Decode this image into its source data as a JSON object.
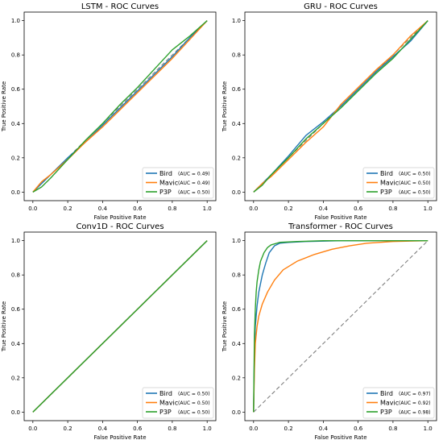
{
  "chart_data": [
    {
      "type": "line",
      "title": "LSTM - ROC Curves",
      "xlabel": "False Positive Rate",
      "ylabel": "True Positive Rate",
      "xlim": [
        -0.05,
        1.05
      ],
      "ylim": [
        -0.05,
        1.05
      ],
      "ticks": [
        0.0,
        0.2,
        0.4,
        0.6,
        0.8,
        1.0
      ],
      "tick_labels": [
        "0.0",
        "0.2",
        "0.4",
        "0.6",
        "0.8",
        "1.0"
      ],
      "diagonal": {
        "style": "dashed",
        "color": "#808080"
      },
      "legend_position": "lower-right",
      "series": [
        {
          "name": "Bird",
          "auc_label": "(AUC = 0.49)",
          "color": "#1f77b4",
          "points": [
            [
              0,
              0
            ],
            [
              0.05,
              0.05
            ],
            [
              0.1,
              0.1
            ],
            [
              0.2,
              0.2
            ],
            [
              0.3,
              0.29
            ],
            [
              0.4,
              0.39
            ],
            [
              0.5,
              0.49
            ],
            [
              0.6,
              0.59
            ],
            [
              0.7,
              0.69
            ],
            [
              0.8,
              0.79
            ],
            [
              0.9,
              0.9
            ],
            [
              1,
              1
            ]
          ]
        },
        {
          "name": "Mavic",
          "auc_label": "(AUC = 0.49)",
          "color": "#ff7f0e",
          "points": [
            [
              0,
              0
            ],
            [
              0.05,
              0.06
            ],
            [
              0.1,
              0.1
            ],
            [
              0.2,
              0.19
            ],
            [
              0.3,
              0.29
            ],
            [
              0.4,
              0.38
            ],
            [
              0.5,
              0.48
            ],
            [
              0.6,
              0.58
            ],
            [
              0.7,
              0.68
            ],
            [
              0.8,
              0.78
            ],
            [
              0.9,
              0.89
            ],
            [
              1,
              1
            ]
          ]
        },
        {
          "name": "P3P",
          "auc_label": "(AUC = 0.50)",
          "color": "#2ca02c",
          "points": [
            [
              0,
              0
            ],
            [
              0.05,
              0.03
            ],
            [
              0.1,
              0.08
            ],
            [
              0.2,
              0.19
            ],
            [
              0.3,
              0.3
            ],
            [
              0.4,
              0.4
            ],
            [
              0.5,
              0.51
            ],
            [
              0.6,
              0.61
            ],
            [
              0.7,
              0.72
            ],
            [
              0.8,
              0.83
            ],
            [
              0.9,
              0.91
            ],
            [
              1,
              1
            ]
          ]
        }
      ]
    },
    {
      "type": "line",
      "title": "GRU - ROC Curves",
      "xlabel": "False Positive Rate",
      "ylabel": "True Positive Rate",
      "xlim": [
        -0.05,
        1.05
      ],
      "ylim": [
        -0.05,
        1.05
      ],
      "ticks": [
        0.0,
        0.2,
        0.4,
        0.6,
        0.8,
        1.0
      ],
      "tick_labels": [
        "0.0",
        "0.2",
        "0.4",
        "0.6",
        "0.8",
        "1.0"
      ],
      "diagonal": {
        "style": "dashed",
        "color": "#808080"
      },
      "legend_position": "lower-right",
      "series": [
        {
          "name": "Bird",
          "auc_label": "(AUC = 0.50)",
          "color": "#1f77b4",
          "points": [
            [
              0,
              0
            ],
            [
              0.05,
              0.05
            ],
            [
              0.1,
              0.1
            ],
            [
              0.2,
              0.21
            ],
            [
              0.3,
              0.33
            ],
            [
              0.4,
              0.41
            ],
            [
              0.5,
              0.5
            ],
            [
              0.6,
              0.6
            ],
            [
              0.7,
              0.7
            ],
            [
              0.8,
              0.79
            ],
            [
              0.9,
              0.88
            ],
            [
              1,
              1
            ]
          ]
        },
        {
          "name": "Mavic",
          "auc_label": "(AUC = 0.50)",
          "color": "#ff7f0e",
          "points": [
            [
              0,
              0
            ],
            [
              0.05,
              0.05
            ],
            [
              0.1,
              0.09
            ],
            [
              0.2,
              0.19
            ],
            [
              0.3,
              0.29
            ],
            [
              0.4,
              0.38
            ],
            [
              0.5,
              0.51
            ],
            [
              0.6,
              0.61
            ],
            [
              0.7,
              0.71
            ],
            [
              0.8,
              0.8
            ],
            [
              0.9,
              0.91
            ],
            [
              1,
              1
            ]
          ]
        },
        {
          "name": "P3P",
          "auc_label": "(AUC = 0.50)",
          "color": "#2ca02c",
          "points": [
            [
              0,
              0
            ],
            [
              0.05,
              0.04
            ],
            [
              0.1,
              0.1
            ],
            [
              0.2,
              0.2
            ],
            [
              0.3,
              0.31
            ],
            [
              0.4,
              0.4
            ],
            [
              0.5,
              0.49
            ],
            [
              0.6,
              0.59
            ],
            [
              0.7,
              0.69
            ],
            [
              0.8,
              0.78
            ],
            [
              0.9,
              0.89
            ],
            [
              1,
              1
            ]
          ]
        }
      ]
    },
    {
      "type": "line",
      "title": "Conv1D - ROC Curves",
      "xlabel": "False Positive Rate",
      "ylabel": "True Positive Rate",
      "xlim": [
        -0.05,
        1.05
      ],
      "ylim": [
        -0.05,
        1.05
      ],
      "ticks": [
        0.0,
        0.2,
        0.4,
        0.6,
        0.8,
        1.0
      ],
      "tick_labels": [
        "0.0",
        "0.2",
        "0.4",
        "0.6",
        "0.8",
        "1.0"
      ],
      "diagonal": {
        "style": "dashed",
        "color": "#808080"
      },
      "legend_position": "lower-right",
      "series": [
        {
          "name": "Bird",
          "auc_label": "(AUC = 0.50)",
          "color": "#1f77b4",
          "points": [
            [
              0,
              0
            ],
            [
              1,
              1
            ]
          ]
        },
        {
          "name": "Mavic",
          "auc_label": "(AUC = 0.50)",
          "color": "#ff7f0e",
          "points": [
            [
              0,
              0
            ],
            [
              1,
              1
            ]
          ]
        },
        {
          "name": "P3P",
          "auc_label": "(AUC = 0.50)",
          "color": "#2ca02c",
          "points": [
            [
              0,
              0
            ],
            [
              1,
              1
            ]
          ]
        }
      ]
    },
    {
      "type": "line",
      "title": "Transformer - ROC Curves",
      "xlabel": "False Positive Rate",
      "ylabel": "True Positive Rate",
      "xlim": [
        -0.05,
        1.05
      ],
      "ylim": [
        -0.05,
        1.05
      ],
      "ticks": [
        0.0,
        0.2,
        0.4,
        0.6,
        0.8,
        1.0
      ],
      "tick_labels": [
        "0.0",
        "0.2",
        "0.4",
        "0.6",
        "0.8",
        "1.0"
      ],
      "diagonal": {
        "style": "dashed",
        "color": "#808080"
      },
      "legend_position": "lower-right",
      "series": [
        {
          "name": "Bird",
          "auc_label": "(AUC = 0.97)",
          "color": "#1f77b4",
          "points": [
            [
              0,
              0
            ],
            [
              0.005,
              0.35
            ],
            [
              0.01,
              0.5
            ],
            [
              0.02,
              0.62
            ],
            [
              0.03,
              0.7
            ],
            [
              0.05,
              0.8
            ],
            [
              0.07,
              0.87
            ],
            [
              0.09,
              0.93
            ],
            [
              0.12,
              0.97
            ],
            [
              0.15,
              0.985
            ],
            [
              0.2,
              0.99
            ],
            [
              0.3,
              0.995
            ],
            [
              0.5,
              1
            ],
            [
              1,
              1
            ]
          ]
        },
        {
          "name": "Mavic",
          "auc_label": "(AUC = 0.92)",
          "color": "#ff7f0e",
          "points": [
            [
              0,
              0
            ],
            [
              0.005,
              0.25
            ],
            [
              0.01,
              0.4
            ],
            [
              0.02,
              0.5
            ],
            [
              0.03,
              0.56
            ],
            [
              0.05,
              0.63
            ],
            [
              0.08,
              0.7
            ],
            [
              0.12,
              0.77
            ],
            [
              0.17,
              0.83
            ],
            [
              0.25,
              0.88
            ],
            [
              0.35,
              0.92
            ],
            [
              0.45,
              0.95
            ],
            [
              0.55,
              0.97
            ],
            [
              0.65,
              0.985
            ],
            [
              0.8,
              0.995
            ],
            [
              1,
              1
            ]
          ]
        },
        {
          "name": "P3P",
          "auc_label": "(AUC = 0.98)",
          "color": "#2ca02c",
          "points": [
            [
              0,
              0
            ],
            [
              0.005,
              0.45
            ],
            [
              0.01,
              0.6
            ],
            [
              0.015,
              0.7
            ],
            [
              0.02,
              0.76
            ],
            [
              0.03,
              0.83
            ],
            [
              0.04,
              0.88
            ],
            [
              0.06,
              0.93
            ],
            [
              0.08,
              0.96
            ],
            [
              0.1,
              0.975
            ],
            [
              0.15,
              0.99
            ],
            [
              0.25,
              0.995
            ],
            [
              0.4,
              1
            ],
            [
              1,
              1
            ]
          ]
        }
      ]
    }
  ]
}
